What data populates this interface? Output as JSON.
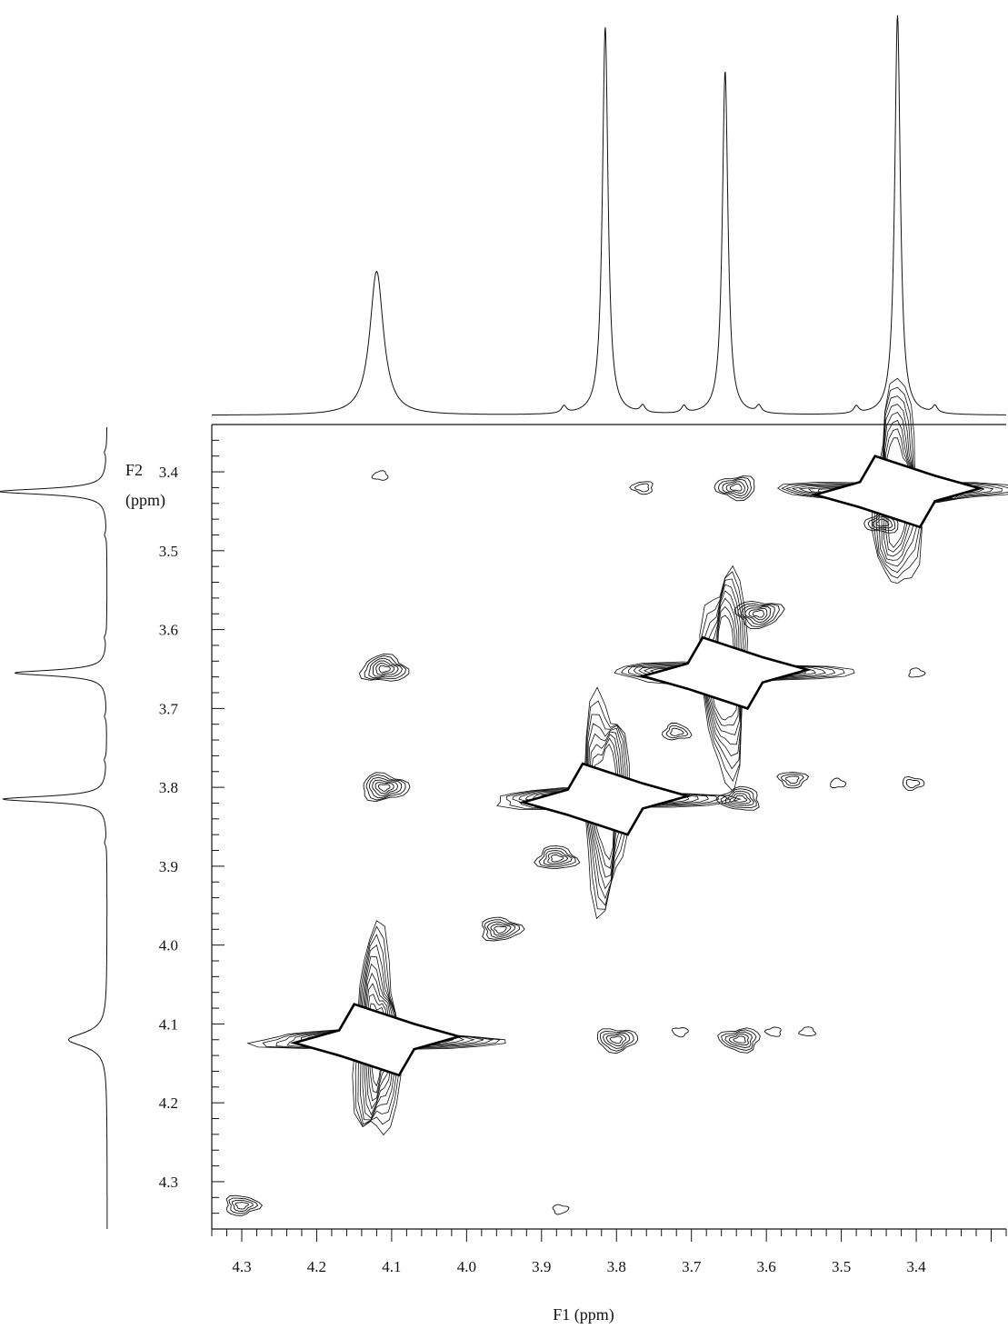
{
  "chart_data": {
    "type": "heatmap",
    "subtype": "2D NMR contour plot (homonuclear correlation) with 1D projections",
    "title": "",
    "xlabel": "F1 (ppm)",
    "ylabel_line1": "F2",
    "ylabel_line2": "(ppm)",
    "xlim": [
      4.34,
      3.28
    ],
    "ylim": [
      3.34,
      4.36
    ],
    "x_reversed": true,
    "y_reversed": true,
    "grid": false,
    "x_ticks": [
      4.3,
      4.2,
      4.1,
      4.0,
      3.9,
      3.8,
      3.7,
      3.6,
      3.5,
      3.4
    ],
    "x_tick_labels": [
      "4.3",
      "4.2",
      "4.1",
      "4.0",
      "3.9",
      "3.8",
      "3.7",
      "3.6",
      "3.5",
      "3.4"
    ],
    "y_ticks": [
      3.4,
      3.5,
      3.6,
      3.7,
      3.8,
      3.9,
      4.0,
      4.1,
      4.2,
      4.3
    ],
    "y_tick_labels": [
      "3.4",
      "3.5",
      "3.6",
      "3.7",
      "3.8",
      "3.9",
      "4.0",
      "4.1",
      "4.2",
      "4.3"
    ],
    "projection_1d": {
      "peaks": [
        {
          "shift": 4.12,
          "intensity": 0.36,
          "width": 0.011
        },
        {
          "shift": 3.815,
          "intensity": 0.97,
          "width": 0.0045
        },
        {
          "shift": 3.655,
          "intensity": 0.86,
          "width": 0.0045
        },
        {
          "shift": 3.425,
          "intensity": 1.0,
          "width": 0.0045
        }
      ],
      "small_peaks": [
        3.87,
        3.765,
        3.71,
        3.61,
        3.48,
        3.375
      ]
    },
    "diagonal_peaks": [
      {
        "f1": 4.12,
        "f2": 4.12,
        "levels": 10
      },
      {
        "f1": 3.815,
        "f2": 3.815,
        "levels": 8
      },
      {
        "f1": 3.655,
        "f2": 3.655,
        "levels": 8
      },
      {
        "f1": 3.425,
        "f2": 3.425,
        "levels": 8
      }
    ],
    "cross_peaks": [
      {
        "f1": 4.11,
        "f2": 3.65,
        "levels": 6
      },
      {
        "f1": 4.11,
        "f2": 3.8,
        "levels": 6
      },
      {
        "f1": 3.8,
        "f2": 4.12,
        "levels": 5
      },
      {
        "f1": 3.635,
        "f2": 4.12,
        "levels": 5
      },
      {
        "f1": 3.635,
        "f2": 3.815,
        "levels": 5
      },
      {
        "f1": 3.88,
        "f2": 3.89,
        "levels": 5
      },
      {
        "f1": 3.955,
        "f2": 3.98,
        "levels": 5
      },
      {
        "f1": 3.61,
        "f2": 3.58,
        "levels": 6
      },
      {
        "f1": 3.64,
        "f2": 3.42,
        "levels": 5
      },
      {
        "f1": 3.445,
        "f2": 3.465,
        "levels": 4
      },
      {
        "f1": 3.72,
        "f2": 3.73,
        "levels": 3
      },
      {
        "f1": 4.3,
        "f2": 4.33,
        "levels": 4
      },
      {
        "f1": 3.565,
        "f2": 3.79,
        "levels": 3
      },
      {
        "f1": 3.765,
        "f2": 3.42,
        "levels": 2
      },
      {
        "f1": 4.115,
        "f2": 3.405,
        "levels": 1
      },
      {
        "f1": 3.505,
        "f2": 3.795,
        "levels": 1
      },
      {
        "f1": 3.405,
        "f2": 3.795,
        "levels": 2
      },
      {
        "f1": 3.715,
        "f2": 4.11,
        "levels": 1
      },
      {
        "f1": 3.59,
        "f2": 4.11,
        "levels": 1
      },
      {
        "f1": 3.545,
        "f2": 4.11,
        "levels": 1
      },
      {
        "f1": 3.4,
        "f2": 3.655,
        "levels": 1
      },
      {
        "f1": 3.875,
        "f2": 4.335,
        "levels": 1
      }
    ]
  }
}
